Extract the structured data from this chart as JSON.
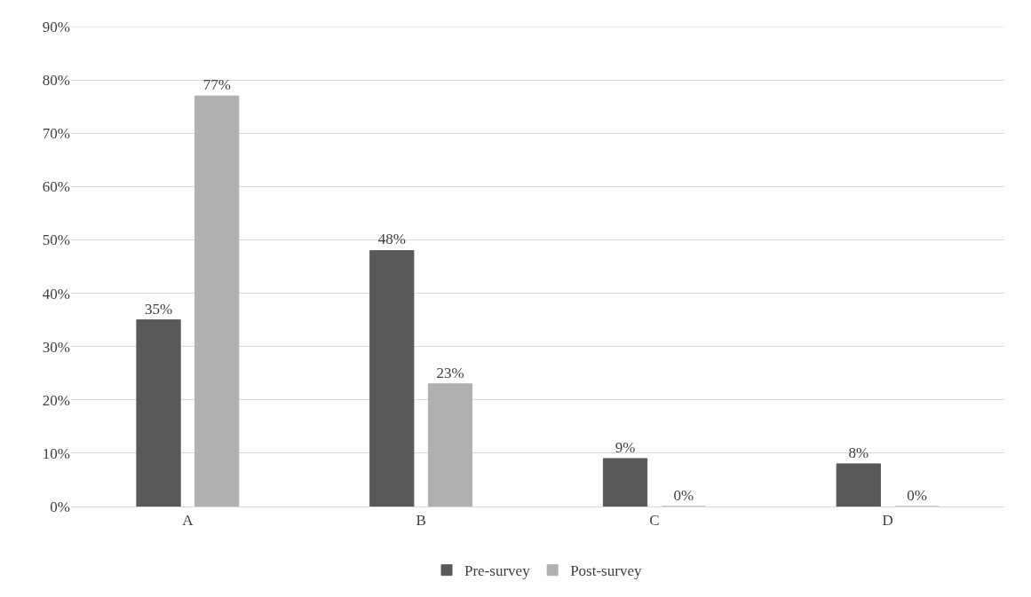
{
  "chart_data": {
    "type": "bar",
    "categories": [
      "A",
      "B",
      "C",
      "D"
    ],
    "series": [
      {
        "name": "Pre-survey",
        "color": "#595959",
        "values": [
          35,
          48,
          9,
          8
        ],
        "value_labels": [
          "35%",
          "48%",
          "9%",
          "8%"
        ]
      },
      {
        "name": "Post-survey",
        "color": "#b0b0b0",
        "values": [
          77,
          23,
          0,
          0
        ],
        "value_labels": [
          "77%",
          "23%",
          "0%",
          "0%"
        ]
      }
    ],
    "ylim": [
      0,
      90
    ],
    "yticks": [
      {
        "value": 0,
        "label": "0%"
      },
      {
        "value": 10,
        "label": "10%"
      },
      {
        "value": 20,
        "label": "20%"
      },
      {
        "value": 30,
        "label": "30%"
      },
      {
        "value": 40,
        "label": "40%"
      },
      {
        "value": 50,
        "label": "50%"
      },
      {
        "value": 60,
        "label": "60%"
      },
      {
        "value": 70,
        "label": "70%"
      },
      {
        "value": 80,
        "label": "80%"
      },
      {
        "value": 90,
        "label": "90%"
      }
    ],
    "grid": "y",
    "legend": "bottom"
  }
}
